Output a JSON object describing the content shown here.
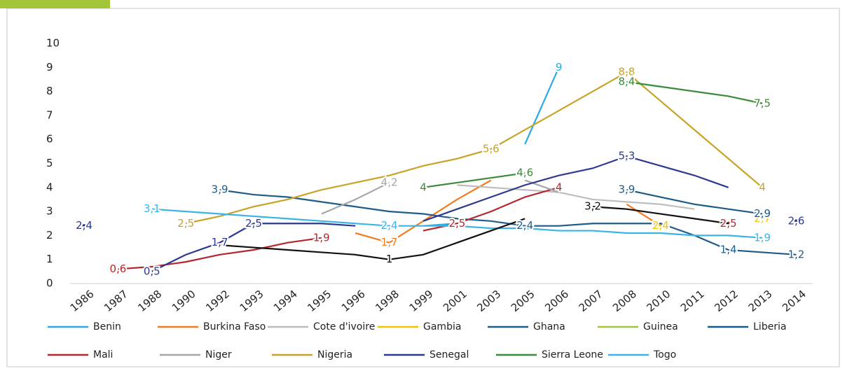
{
  "chart_data": {
    "type": "line",
    "categories": [
      "1986",
      "1987",
      "1988",
      "1990",
      "1992",
      "1993",
      "1994",
      "1995",
      "1996",
      "1998",
      "1999",
      "2001",
      "2003",
      "2005",
      "2006",
      "2007",
      "2008",
      "2010",
      "2011",
      "2012",
      "2013",
      "2014"
    ],
    "ylim": [
      0,
      10
    ],
    "yticks": [
      0,
      1,
      2,
      3,
      4,
      5,
      6,
      7,
      8,
      9,
      10
    ],
    "grid": false,
    "legend": "bottom",
    "series": [
      {
        "name": "Benin",
        "color": "#29abe2",
        "values": [
          null,
          null,
          null,
          null,
          null,
          null,
          null,
          null,
          null,
          null,
          2.4,
          2.5,
          null,
          5.8,
          9,
          null,
          null,
          null,
          null,
          null,
          null,
          null
        ],
        "value_labels": [
          null,
          null,
          null,
          null,
          null,
          null,
          null,
          null,
          null,
          null,
          null,
          null,
          null,
          null,
          "9",
          null,
          null,
          null,
          null,
          null,
          null,
          null
        ]
      },
      {
        "name": "Burkina Faso",
        "color": "#f47b20",
        "values": [
          null,
          null,
          null,
          null,
          null,
          null,
          null,
          null,
          2.1,
          1.7,
          2.6,
          3.5,
          4.3,
          null,
          null,
          null,
          3.3,
          2.4,
          null,
          null,
          null,
          null
        ],
        "value_labels": [
          null,
          null,
          null,
          null,
          null,
          null,
          null,
          null,
          null,
          "1,7",
          null,
          null,
          null,
          null,
          null,
          null,
          null,
          null,
          null,
          null,
          null,
          null
        ]
      },
      {
        "name": "Cote d'ivoire",
        "color": "#bdbdbd",
        "values": [
          null,
          null,
          null,
          null,
          null,
          null,
          null,
          null,
          null,
          null,
          null,
          4.1,
          4.0,
          3.9,
          3.8,
          3.5,
          3.4,
          3.3,
          3.1,
          null,
          null,
          null
        ],
        "value_labels": [
          null,
          null,
          null,
          null,
          null,
          null,
          null,
          null,
          null,
          null,
          null,
          null,
          null,
          null,
          null,
          null,
          null,
          null,
          null,
          null,
          null,
          null
        ]
      },
      {
        "name": "Gambia",
        "color": "#f2c500",
        "values": [
          null,
          null,
          null,
          null,
          null,
          null,
          null,
          null,
          null,
          null,
          null,
          null,
          null,
          null,
          null,
          null,
          null,
          2.4,
          null,
          null,
          2.7,
          null
        ],
        "value_labels": [
          null,
          null,
          null,
          null,
          null,
          null,
          null,
          null,
          null,
          null,
          null,
          null,
          null,
          null,
          null,
          null,
          null,
          "2,4",
          null,
          null,
          "2,7",
          null
        ]
      },
      {
        "name": "Ghana",
        "color": "#1f5c8a",
        "values": [
          null,
          null,
          null,
          null,
          3.9,
          3.7,
          3.6,
          3.4,
          3.2,
          3.0,
          2.9,
          2.7,
          2.6,
          2.4,
          2.4,
          2.5,
          2.5,
          2.5,
          2.0,
          1.4,
          1.3,
          1.2
        ],
        "value_labels": [
          null,
          null,
          null,
          null,
          "3,9",
          null,
          null,
          null,
          null,
          null,
          null,
          null,
          null,
          "2,4",
          null,
          null,
          null,
          null,
          null,
          "1,4",
          null,
          "1,2"
        ]
      },
      {
        "name": "Guinea",
        "color": "#a3c639",
        "values": [
          null,
          null,
          null,
          null,
          null,
          null,
          null,
          null,
          null,
          null,
          null,
          null,
          null,
          null,
          null,
          null,
          null,
          null,
          null,
          null,
          null,
          null
        ],
        "value_labels": [
          null,
          null,
          null,
          null,
          null,
          null,
          null,
          null,
          null,
          null,
          null,
          null,
          null,
          null,
          null,
          null,
          null,
          null,
          null,
          null,
          null,
          null
        ]
      },
      {
        "name": "Liberia",
        "color": "#1a5a86",
        "values": [
          null,
          null,
          null,
          null,
          null,
          null,
          null,
          null,
          null,
          null,
          null,
          null,
          null,
          null,
          null,
          null,
          3.9,
          3.6,
          3.3,
          3.1,
          2.9,
          null
        ],
        "value_labels": [
          null,
          null,
          null,
          null,
          null,
          null,
          null,
          null,
          null,
          null,
          null,
          null,
          null,
          null,
          null,
          null,
          "3,9",
          null,
          null,
          null,
          "2,9",
          null
        ]
      },
      {
        "name": "Mali",
        "color": "#b5262d",
        "values": [
          null,
          0.6,
          0.7,
          0.9,
          1.2,
          1.4,
          1.7,
          1.9,
          null,
          null,
          2.2,
          2.5,
          3.0,
          3.6,
          4.0,
          null,
          null,
          null,
          null,
          2.5,
          null,
          null
        ],
        "value_labels": [
          null,
          "0,6",
          null,
          null,
          null,
          null,
          null,
          "1,9",
          null,
          null,
          null,
          "2,5",
          null,
          null,
          "4",
          null,
          null,
          null,
          null,
          "2,5",
          null,
          null
        ]
      },
      {
        "name": "Niger",
        "color": "#a6a6a6",
        "values": [
          null,
          null,
          null,
          null,
          null,
          null,
          null,
          2.9,
          3.5,
          4.2,
          null,
          null,
          null,
          4.3,
          3.8,
          null,
          null,
          null,
          null,
          null,
          null,
          null
        ],
        "value_labels": [
          null,
          null,
          null,
          null,
          null,
          null,
          null,
          null,
          null,
          "4,2",
          null,
          null,
          null,
          null,
          null,
          null,
          null,
          null,
          null,
          null,
          null,
          null
        ]
      },
      {
        "name": "Nigeria",
        "color": "#c9a227",
        "values": [
          null,
          null,
          null,
          2.5,
          2.8,
          3.2,
          3.5,
          3.9,
          4.2,
          4.5,
          4.9,
          5.2,
          5.6,
          6.4,
          7.2,
          8.0,
          8.8,
          7.6,
          6.4,
          5.2,
          4.0,
          null
        ],
        "value_labels": [
          null,
          null,
          null,
          "2,5",
          null,
          null,
          null,
          null,
          null,
          null,
          null,
          null,
          "5,6",
          null,
          null,
          null,
          "8,8",
          null,
          null,
          null,
          "4",
          null
        ]
      },
      {
        "name": "Senegal",
        "color": "#2b3a8f",
        "values": [
          2.4,
          null,
          0.5,
          1.2,
          1.7,
          2.5,
          2.5,
          2.5,
          2.4,
          null,
          2.6,
          3.1,
          3.6,
          4.1,
          4.5,
          4.8,
          5.3,
          4.9,
          4.5,
          4.0,
          null,
          2.6
        ],
        "value_labels": [
          "2,4",
          null,
          "0,5",
          null,
          "1,7",
          "2,5",
          null,
          null,
          null,
          null,
          null,
          null,
          null,
          null,
          null,
          null,
          "5,3",
          null,
          null,
          null,
          null,
          "2,6"
        ]
      },
      {
        "name": "Sierra Leone",
        "color": "#3a8b3a",
        "values": [
          null,
          null,
          null,
          null,
          null,
          null,
          null,
          null,
          null,
          null,
          4,
          4.2,
          4.4,
          4.6,
          null,
          null,
          8.4,
          8.2,
          8.0,
          7.8,
          7.5,
          null
        ],
        "value_labels": [
          null,
          null,
          null,
          null,
          null,
          null,
          null,
          null,
          null,
          null,
          "4",
          null,
          null,
          "4,6",
          null,
          null,
          "8,4",
          null,
          null,
          null,
          "7,5",
          null
        ]
      },
      {
        "name": "Togo",
        "color": "#3ab4e6",
        "values": [
          null,
          null,
          3.1,
          3.0,
          2.9,
          2.8,
          2.7,
          2.6,
          2.5,
          2.4,
          2.4,
          2.4,
          2.3,
          2.3,
          2.2,
          2.2,
          2.1,
          2.1,
          2.0,
          2.0,
          1.9,
          null
        ],
        "value_labels": [
          null,
          null,
          "3,1",
          null,
          null,
          null,
          null,
          null,
          null,
          "2,4",
          null,
          null,
          null,
          null,
          null,
          null,
          null,
          null,
          null,
          null,
          "1,9",
          null
        ]
      },
      {
        "color": "#111111",
        "values": [
          null,
          null,
          null,
          null,
          1.6,
          1.5,
          1.4,
          1.3,
          1.2,
          1.0,
          1.2,
          1.7,
          2.2,
          2.7,
          null,
          3.2,
          3.1,
          2.9,
          2.7,
          2.5,
          null,
          null
        ],
        "value_labels": [
          null,
          null,
          null,
          null,
          null,
          null,
          null,
          null,
          null,
          "1",
          null,
          null,
          null,
          null,
          null,
          "3,2",
          null,
          null,
          null,
          null,
          null,
          null
        ]
      }
    ]
  }
}
